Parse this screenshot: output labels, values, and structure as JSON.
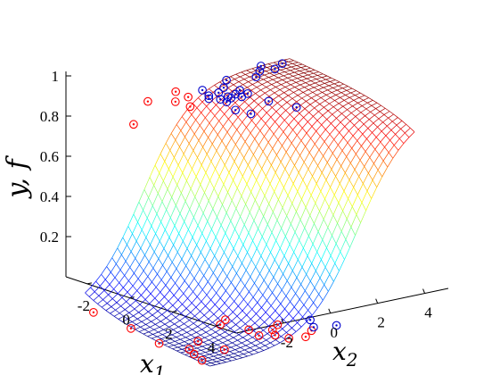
{
  "chart_data": {
    "type": "surface3d",
    "title": "",
    "zlabel": "y, f",
    "xlabel": "x1",
    "ylabel": "x2",
    "zlim": [
      0,
      1
    ],
    "x1lim": [
      -3,
      5
    ],
    "x2lim": [
      -4,
      5
    ],
    "z_ticks": [
      "0.2",
      "0.4",
      "0.6",
      "0.8",
      "1"
    ],
    "x1_ticks": [
      "-2",
      "0",
      "2",
      "4"
    ],
    "x2_ticks": [
      "-2",
      "0",
      "2",
      "4"
    ],
    "grid": false,
    "surface": {
      "function": "logistic",
      "colormap": "jet",
      "mesh": "wireframe"
    },
    "series": [
      {
        "name": "",
        "marker_color": "#ff0000",
        "points": [
          {
            "x1": 4.2,
            "x2": -3.8,
            "y": 0
          },
          {
            "x1": 3.4,
            "x2": -3.6,
            "y": 0
          },
          {
            "x1": 2.8,
            "x2": -3.4,
            "y": 0
          },
          {
            "x1": 3.6,
            "x2": -2.4,
            "y": 0
          },
          {
            "x1": 2.2,
            "x2": -2.6,
            "y": 0
          },
          {
            "x1": 1.6,
            "x2": -3.9,
            "y": 0
          },
          {
            "x1": -0.5,
            "x2": -3.7,
            "y": 0
          },
          {
            "x1": -2.9,
            "x2": -3.7,
            "y": 0
          },
          {
            "x1": 1.0,
            "x2": -0.8,
            "y": 0
          },
          {
            "x1": 0.6,
            "x2": -0.3,
            "y": 0
          },
          {
            "x1": 2.1,
            "x2": -0.3,
            "y": 0
          },
          {
            "x1": 2.9,
            "x2": -0.4,
            "y": 0
          },
          {
            "x1": 3.2,
            "x2": 0.1,
            "y": 0
          },
          {
            "x1": 2.6,
            "x2": 0.4,
            "y": 0
          },
          {
            "x1": 3.8,
            "x2": 0.3,
            "y": 0
          },
          {
            "x1": 2.2,
            "x2": 0.9,
            "y": 0
          },
          {
            "x1": 4.0,
            "x2": 0.9,
            "y": 0
          },
          {
            "x1": 3.5,
            "x2": 1.5,
            "y": 0
          },
          {
            "x1": -1.6,
            "x2": -2.2,
            "y": 1
          },
          {
            "x1": -1.0,
            "x2": -1.4,
            "y": 1
          },
          {
            "x1": -2.0,
            "x2": -0.7,
            "y": 1
          },
          {
            "x1": -1.2,
            "x2": -0.7,
            "y": 1
          },
          {
            "x1": -0.2,
            "x2": -1.3,
            "y": 1
          },
          {
            "x1": 0.4,
            "x2": -4.2,
            "y": 1
          }
        ]
      },
      {
        "name": "",
        "marker_color": "#0000cc",
        "points": [
          {
            "x1": 3.5,
            "x2": 2.6,
            "y": 0
          },
          {
            "x1": 3.2,
            "x2": 1.8,
            "y": 0
          },
          {
            "x1": 2.4,
            "x2": 2.2,
            "y": 0
          },
          {
            "x1": -2.1,
            "x2": 1.6,
            "y": 1
          },
          {
            "x1": -1.8,
            "x2": 2.7,
            "y": 1
          },
          {
            "x1": -2.3,
            "x2": 3.2,
            "y": 1
          },
          {
            "x1": -2.2,
            "x2": 3.8,
            "y": 1
          },
          {
            "x1": -2.6,
            "x2": 4.4,
            "y": 1
          },
          {
            "x1": -2.8,
            "x2": 3.6,
            "y": 1
          },
          {
            "x1": -0.8,
            "x2": 1.3,
            "y": 1
          },
          {
            "x1": -0.4,
            "x2": 0.5,
            "y": 1
          },
          {
            "x1": -0.1,
            "x2": 0.9,
            "y": 1
          },
          {
            "x1": -0.9,
            "x2": 0.0,
            "y": 1
          },
          {
            "x1": -0.6,
            "x2": -0.2,
            "y": 1
          },
          {
            "x1": -0.3,
            "x2": 0.1,
            "y": 1
          },
          {
            "x1": -0.2,
            "x2": 0.5,
            "y": 1
          },
          {
            "x1": 0.1,
            "x2": 0.1,
            "y": 1
          },
          {
            "x1": 1.1,
            "x2": -0.2,
            "y": 1
          },
          {
            "x1": 1.8,
            "x2": 0.0,
            "y": 1
          },
          {
            "x1": -1.6,
            "x2": 0.2,
            "y": 1
          },
          {
            "x1": -1.0,
            "x2": 0.5,
            "y": 1
          },
          {
            "x1": -0.5,
            "x2": 0.9,
            "y": 1
          },
          {
            "x1": -0.3,
            "x2": 1.3,
            "y": 1
          },
          {
            "x1": -1.4,
            "x2": 1.0,
            "y": 1
          },
          {
            "x1": 0.9,
            "x2": 1.4,
            "y": 1
          },
          {
            "x1": 2.1,
            "x2": 1.8,
            "y": 1
          }
        ]
      }
    ]
  }
}
